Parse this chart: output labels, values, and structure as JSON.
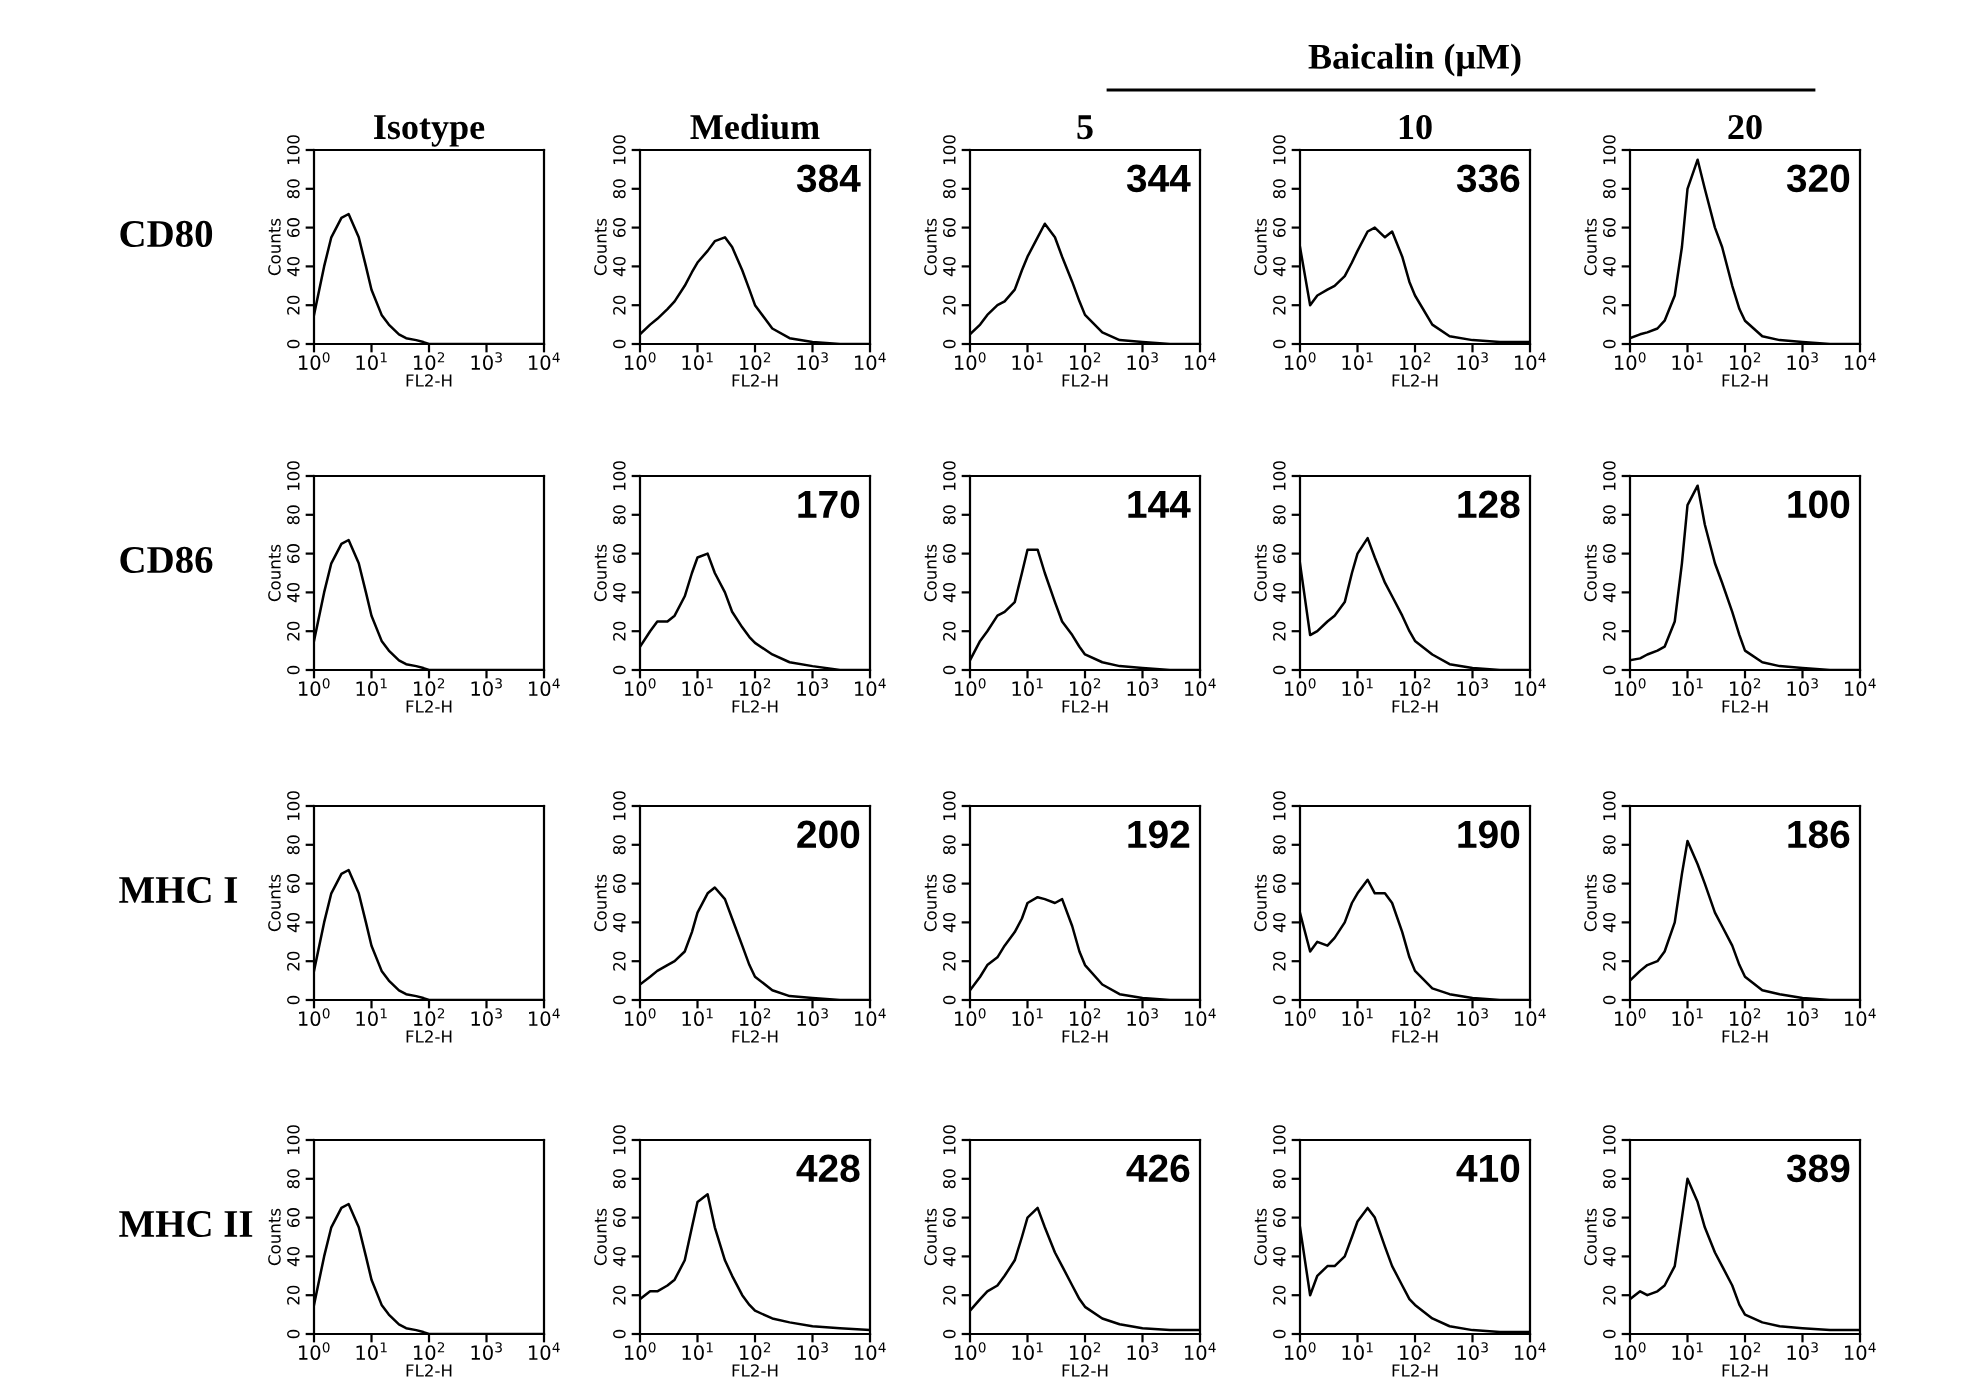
{
  "chart_data": [
    {
      "type": "line",
      "title": "Isotype",
      "annotations": [
        "CD80"
      ],
      "xlabel": "FL2-H",
      "ylabel": "Counts",
      "log": "x",
      "xlim": [
        1,
        10000
      ],
      "ylim": [
        0,
        100
      ],
      "xticks": [
        {
          "value": 1,
          "label": "10$^{0}$"
        },
        {
          "value": 10,
          "label": "10$^{1}$"
        },
        {
          "value": 100,
          "label": "10$^{2}$"
        },
        {
          "value": 1000,
          "label": "10$^{3}$"
        },
        {
          "value": 10000,
          "label": "10$^{4}$"
        }
      ],
      "yticks": [
        0,
        20,
        40,
        60,
        80,
        100
      ],
      "grid": false,
      "x": [
        1,
        1.5,
        2,
        3,
        4,
        6,
        8,
        10,
        15,
        20,
        30,
        40,
        60,
        80,
        100,
        200,
        400,
        1000,
        3000,
        10000
      ],
      "series": [
        {
          "color": "#000000",
          "values": [
            15,
            40,
            55,
            65,
            67,
            55,
            40,
            28,
            15,
            10,
            5,
            3,
            2,
            1,
            0,
            0,
            0,
            0,
            0,
            0
          ]
        }
      ]
    },
    {
      "type": "line",
      "title": "Medium",
      "annotations": [
        "384"
      ],
      "xlabel": "FL2-H",
      "ylabel": "Counts",
      "log": "x",
      "xlim": [
        1,
        10000
      ],
      "ylim": [
        0,
        100
      ],
      "xticks": [
        {
          "value": 1,
          "label": "10$^{0}$"
        },
        {
          "value": 10,
          "label": "10$^{1}$"
        },
        {
          "value": 100,
          "label": "10$^{2}$"
        },
        {
          "value": 1000,
          "label": "10$^{3}$"
        },
        {
          "value": 10000,
          "label": "10$^{4}$"
        }
      ],
      "yticks": [
        0,
        20,
        40,
        60,
        80,
        100
      ],
      "grid": false,
      "x": [
        1,
        1.5,
        2,
        3,
        4,
        6,
        8,
        10,
        15,
        20,
        30,
        40,
        60,
        80,
        100,
        200,
        400,
        1000,
        3000,
        10000
      ],
      "series": [
        {
          "color": "#000000",
          "values": [
            5,
            10,
            13,
            18,
            22,
            30,
            37,
            42,
            48,
            53,
            55,
            50,
            38,
            28,
            20,
            8,
            3,
            1,
            0,
            0
          ]
        }
      ]
    },
    {
      "type": "line",
      "title": "5",
      "annotations": [
        "344"
      ],
      "xlabel": "FL2-H",
      "ylabel": "Counts",
      "log": "x",
      "xlim": [
        1,
        10000
      ],
      "ylim": [
        0,
        100
      ],
      "xticks": [
        {
          "value": 1,
          "label": "10$^{0}$"
        },
        {
          "value": 10,
          "label": "10$^{1}$"
        },
        {
          "value": 100,
          "label": "10$^{2}$"
        },
        {
          "value": 1000,
          "label": "10$^{3}$"
        },
        {
          "value": 10000,
          "label": "10$^{4}$"
        }
      ],
      "yticks": [
        0,
        20,
        40,
        60,
        80,
        100
      ],
      "grid": false,
      "x": [
        1,
        1.5,
        2,
        3,
        4,
        6,
        8,
        10,
        15,
        20,
        30,
        40,
        60,
        80,
        100,
        200,
        400,
        1000,
        3000,
        10000
      ],
      "series": [
        {
          "color": "#000000",
          "values": [
            5,
            10,
            15,
            20,
            22,
            28,
            38,
            45,
            55,
            62,
            55,
            45,
            32,
            22,
            15,
            6,
            2,
            1,
            0,
            0
          ]
        }
      ]
    },
    {
      "type": "line",
      "title": "10",
      "annotations": [
        "Baicalin (μM)",
        "336"
      ],
      "xlabel": "FL2-H",
      "ylabel": "Counts",
      "log": "x",
      "xlim": [
        1,
        10000
      ],
      "ylim": [
        0,
        100
      ],
      "xticks": [
        {
          "value": 1,
          "label": "10$^{0}$"
        },
        {
          "value": 10,
          "label": "10$^{1}$"
        },
        {
          "value": 100,
          "label": "10$^{2}$"
        },
        {
          "value": 1000,
          "label": "10$^{3}$"
        },
        {
          "value": 10000,
          "label": "10$^{4}$"
        }
      ],
      "yticks": [
        0,
        20,
        40,
        60,
        80,
        100
      ],
      "grid": false,
      "x": [
        1,
        1.5,
        2,
        3,
        4,
        6,
        8,
        10,
        15,
        20,
        30,
        40,
        60,
        80,
        100,
        200,
        400,
        1000,
        3000,
        10000
      ],
      "series": [
        {
          "color": "#000000",
          "values": [
            50,
            20,
            25,
            28,
            30,
            35,
            42,
            48,
            58,
            60,
            55,
            58,
            45,
            32,
            25,
            10,
            4,
            2,
            1,
            1
          ]
        }
      ]
    },
    {
      "type": "line",
      "title": "20",
      "annotations": [
        "320"
      ],
      "xlabel": "FL2-H",
      "ylabel": "Counts",
      "log": "x",
      "xlim": [
        1,
        10000
      ],
      "ylim": [
        0,
        100
      ],
      "xticks": [
        {
          "value": 1,
          "label": "10$^{0}$"
        },
        {
          "value": 10,
          "label": "10$^{1}$"
        },
        {
          "value": 100,
          "label": "10$^{2}$"
        },
        {
          "value": 1000,
          "label": "10$^{3}$"
        },
        {
          "value": 10000,
          "label": "10$^{4}$"
        }
      ],
      "yticks": [
        0,
        20,
        40,
        60,
        80,
        100
      ],
      "grid": false,
      "x": [
        1,
        1.5,
        2,
        3,
        4,
        6,
        8,
        10,
        15,
        20,
        30,
        40,
        60,
        80,
        100,
        200,
        400,
        1000,
        3000,
        10000
      ],
      "series": [
        {
          "color": "#000000",
          "values": [
            3,
            5,
            6,
            8,
            12,
            25,
            50,
            80,
            95,
            80,
            60,
            50,
            30,
            18,
            12,
            4,
            2,
            1,
            0,
            0
          ]
        }
      ]
    },
    {
      "type": "line",
      "annotations": [
        "CD86"
      ],
      "xlabel": "FL2-H",
      "ylabel": "Counts",
      "log": "x",
      "xlim": [
        1,
        10000
      ],
      "ylim": [
        0,
        100
      ],
      "xticks": [
        {
          "value": 1,
          "label": "10$^{0}$"
        },
        {
          "value": 10,
          "label": "10$^{1}$"
        },
        {
          "value": 100,
          "label": "10$^{2}$"
        },
        {
          "value": 1000,
          "label": "10$^{3}$"
        },
        {
          "value": 10000,
          "label": "10$^{4}$"
        }
      ],
      "yticks": [
        0,
        20,
        40,
        60,
        80,
        100
      ],
      "grid": false,
      "x": [
        1,
        1.5,
        2,
        3,
        4,
        6,
        8,
        10,
        15,
        20,
        30,
        40,
        60,
        80,
        100,
        200,
        400,
        1000,
        3000,
        10000
      ],
      "series": [
        {
          "color": "#000000",
          "values": [
            15,
            40,
            55,
            65,
            67,
            55,
            40,
            28,
            15,
            10,
            5,
            3,
            2,
            1,
            0,
            0,
            0,
            0,
            0,
            0
          ]
        }
      ]
    },
    {
      "type": "line",
      "annotations": [
        "170"
      ],
      "xlabel": "FL2-H",
      "ylabel": "Counts",
      "log": "x",
      "xlim": [
        1,
        10000
      ],
      "ylim": [
        0,
        100
      ],
      "xticks": [
        {
          "value": 1,
          "label": "10$^{0}$"
        },
        {
          "value": 10,
          "label": "10$^{1}$"
        },
        {
          "value": 100,
          "label": "10$^{2}$"
        },
        {
          "value": 1000,
          "label": "10$^{3}$"
        },
        {
          "value": 10000,
          "label": "10$^{4}$"
        }
      ],
      "yticks": [
        0,
        20,
        40,
        60,
        80,
        100
      ],
      "grid": false,
      "x": [
        1,
        1.5,
        2,
        3,
        4,
        6,
        8,
        10,
        15,
        20,
        30,
        40,
        60,
        80,
        100,
        200,
        400,
        1000,
        3000,
        10000
      ],
      "series": [
        {
          "color": "#000000",
          "values": [
            12,
            20,
            25,
            25,
            28,
            38,
            50,
            58,
            60,
            50,
            40,
            30,
            22,
            17,
            14,
            8,
            4,
            2,
            0,
            0
          ]
        }
      ]
    },
    {
      "type": "line",
      "annotations": [
        "144"
      ],
      "xlabel": "FL2-H",
      "ylabel": "Counts",
      "log": "x",
      "xlim": [
        1,
        10000
      ],
      "ylim": [
        0,
        100
      ],
      "xticks": [
        {
          "value": 1,
          "label": "10$^{0}$"
        },
        {
          "value": 10,
          "label": "10$^{1}$"
        },
        {
          "value": 100,
          "label": "10$^{2}$"
        },
        {
          "value": 1000,
          "label": "10$^{3}$"
        },
        {
          "value": 10000,
          "label": "10$^{4}$"
        }
      ],
      "yticks": [
        0,
        20,
        40,
        60,
        80,
        100
      ],
      "grid": false,
      "x": [
        1,
        1.5,
        2,
        3,
        4,
        6,
        8,
        10,
        15,
        20,
        30,
        40,
        60,
        80,
        100,
        200,
        400,
        1000,
        3000,
        10000
      ],
      "series": [
        {
          "color": "#000000",
          "values": [
            5,
            15,
            20,
            28,
            30,
            35,
            50,
            62,
            62,
            50,
            35,
            25,
            18,
            12,
            8,
            4,
            2,
            1,
            0,
            0
          ]
        }
      ]
    },
    {
      "type": "line",
      "annotations": [
        "128"
      ],
      "xlabel": "FL2-H",
      "ylabel": "Counts",
      "log": "x",
      "xlim": [
        1,
        10000
      ],
      "ylim": [
        0,
        100
      ],
      "xticks": [
        {
          "value": 1,
          "label": "10$^{0}$"
        },
        {
          "value": 10,
          "label": "10$^{1}$"
        },
        {
          "value": 100,
          "label": "10$^{2}$"
        },
        {
          "value": 1000,
          "label": "10$^{3}$"
        },
        {
          "value": 10000,
          "label": "10$^{4}$"
        }
      ],
      "yticks": [
        0,
        20,
        40,
        60,
        80,
        100
      ],
      "grid": false,
      "x": [
        1,
        1.5,
        2,
        3,
        4,
        6,
        8,
        10,
        15,
        20,
        30,
        40,
        60,
        80,
        100,
        200,
        400,
        1000,
        3000,
        10000
      ],
      "series": [
        {
          "color": "#000000",
          "values": [
            55,
            18,
            20,
            25,
            28,
            35,
            50,
            60,
            68,
            58,
            45,
            38,
            28,
            20,
            15,
            8,
            3,
            1,
            0,
            0
          ]
        }
      ]
    },
    {
      "type": "line",
      "annotations": [
        "100"
      ],
      "xlabel": "FL2-H",
      "ylabel": "Counts",
      "log": "x",
      "xlim": [
        1,
        10000
      ],
      "ylim": [
        0,
        100
      ],
      "xticks": [
        {
          "value": 1,
          "label": "10$^{0}$"
        },
        {
          "value": 10,
          "label": "10$^{1}$"
        },
        {
          "value": 100,
          "label": "10$^{2}$"
        },
        {
          "value": 1000,
          "label": "10$^{3}$"
        },
        {
          "value": 10000,
          "label": "10$^{4}$"
        }
      ],
      "yticks": [
        0,
        20,
        40,
        60,
        80,
        100
      ],
      "grid": false,
      "x": [
        1,
        1.5,
        2,
        3,
        4,
        6,
        8,
        10,
        15,
        20,
        30,
        40,
        60,
        80,
        100,
        200,
        400,
        1000,
        3000,
        10000
      ],
      "series": [
        {
          "color": "#000000",
          "values": [
            5,
            6,
            8,
            10,
            12,
            25,
            55,
            85,
            95,
            75,
            55,
            45,
            30,
            18,
            10,
            4,
            2,
            1,
            0,
            0
          ]
        }
      ]
    },
    {
      "type": "line",
      "annotations": [
        "MHC I"
      ],
      "xlabel": "FL2-H",
      "ylabel": "Counts",
      "log": "x",
      "xlim": [
        1,
        10000
      ],
      "ylim": [
        0,
        100
      ],
      "xticks": [
        {
          "value": 1,
          "label": "10$^{0}$"
        },
        {
          "value": 10,
          "label": "10$^{1}$"
        },
        {
          "value": 100,
          "label": "10$^{2}$"
        },
        {
          "value": 1000,
          "label": "10$^{3}$"
        },
        {
          "value": 10000,
          "label": "10$^{4}$"
        }
      ],
      "yticks": [
        0,
        20,
        40,
        60,
        80,
        100
      ],
      "grid": false,
      "x": [
        1,
        1.5,
        2,
        3,
        4,
        6,
        8,
        10,
        15,
        20,
        30,
        40,
        60,
        80,
        100,
        200,
        400,
        1000,
        3000,
        10000
      ],
      "series": [
        {
          "color": "#000000",
          "values": [
            15,
            40,
            55,
            65,
            67,
            55,
            40,
            28,
            15,
            10,
            5,
            3,
            2,
            1,
            0,
            0,
            0,
            0,
            0,
            0
          ]
        }
      ]
    },
    {
      "type": "line",
      "annotations": [
        "200"
      ],
      "xlabel": "FL2-H",
      "ylabel": "Counts",
      "log": "x",
      "xlim": [
        1,
        10000
      ],
      "ylim": [
        0,
        100
      ],
      "xticks": [
        {
          "value": 1,
          "label": "10$^{0}$"
        },
        {
          "value": 10,
          "label": "10$^{1}$"
        },
        {
          "value": 100,
          "label": "10$^{2}$"
        },
        {
          "value": 1000,
          "label": "10$^{3}$"
        },
        {
          "value": 10000,
          "label": "10$^{4}$"
        }
      ],
      "yticks": [
        0,
        20,
        40,
        60,
        80,
        100
      ],
      "grid": false,
      "x": [
        1,
        1.5,
        2,
        3,
        4,
        6,
        8,
        10,
        15,
        20,
        30,
        40,
        60,
        80,
        100,
        200,
        400,
        1000,
        3000,
        10000
      ],
      "series": [
        {
          "color": "#000000",
          "values": [
            8,
            12,
            15,
            18,
            20,
            25,
            35,
            45,
            55,
            58,
            52,
            42,
            28,
            18,
            12,
            5,
            2,
            1,
            0,
            0
          ]
        }
      ]
    },
    {
      "type": "line",
      "annotations": [
        "192"
      ],
      "xlabel": "FL2-H",
      "ylabel": "Counts",
      "log": "x",
      "xlim": [
        1,
        10000
      ],
      "ylim": [
        0,
        100
      ],
      "xticks": [
        {
          "value": 1,
          "label": "10$^{0}$"
        },
        {
          "value": 10,
          "label": "10$^{1}$"
        },
        {
          "value": 100,
          "label": "10$^{2}$"
        },
        {
          "value": 1000,
          "label": "10$^{3}$"
        },
        {
          "value": 10000,
          "label": "10$^{4}$"
        }
      ],
      "yticks": [
        0,
        20,
        40,
        60,
        80,
        100
      ],
      "grid": false,
      "x": [
        1,
        1.5,
        2,
        3,
        4,
        6,
        8,
        10,
        15,
        20,
        30,
        40,
        60,
        80,
        100,
        200,
        400,
        1000,
        3000,
        10000
      ],
      "series": [
        {
          "color": "#000000",
          "values": [
            5,
            12,
            18,
            22,
            28,
            35,
            42,
            50,
            53,
            52,
            50,
            52,
            38,
            25,
            18,
            8,
            3,
            1,
            0,
            0
          ]
        }
      ]
    },
    {
      "type": "line",
      "annotations": [
        "190"
      ],
      "xlabel": "FL2-H",
      "ylabel": "Counts",
      "log": "x",
      "xlim": [
        1,
        10000
      ],
      "ylim": [
        0,
        100
      ],
      "xticks": [
        {
          "value": 1,
          "label": "10$^{0}$"
        },
        {
          "value": 10,
          "label": "10$^{1}$"
        },
        {
          "value": 100,
          "label": "10$^{2}$"
        },
        {
          "value": 1000,
          "label": "10$^{3}$"
        },
        {
          "value": 10000,
          "label": "10$^{4}$"
        }
      ],
      "yticks": [
        0,
        20,
        40,
        60,
        80,
        100
      ],
      "grid": false,
      "x": [
        1,
        1.5,
        2,
        3,
        4,
        6,
        8,
        10,
        15,
        20,
        30,
        40,
        60,
        80,
        100,
        200,
        400,
        1000,
        3000,
        10000
      ],
      "series": [
        {
          "color": "#000000",
          "values": [
            45,
            25,
            30,
            28,
            32,
            40,
            50,
            55,
            62,
            55,
            55,
            50,
            35,
            22,
            15,
            6,
            3,
            1,
            0,
            0
          ]
        }
      ]
    },
    {
      "type": "line",
      "annotations": [
        "186"
      ],
      "xlabel": "FL2-H",
      "ylabel": "Counts",
      "log": "x",
      "xlim": [
        1,
        10000
      ],
      "ylim": [
        0,
        100
      ],
      "xticks": [
        {
          "value": 1,
          "label": "10$^{0}$"
        },
        {
          "value": 10,
          "label": "10$^{1}$"
        },
        {
          "value": 100,
          "label": "10$^{2}$"
        },
        {
          "value": 1000,
          "label": "10$^{3}$"
        },
        {
          "value": 10000,
          "label": "10$^{4}$"
        }
      ],
      "yticks": [
        0,
        20,
        40,
        60,
        80,
        100
      ],
      "grid": false,
      "x": [
        1,
        1.5,
        2,
        3,
        4,
        6,
        8,
        10,
        15,
        20,
        30,
        40,
        60,
        80,
        100,
        200,
        400,
        1000,
        3000,
        10000
      ],
      "series": [
        {
          "color": "#000000",
          "values": [
            10,
            15,
            18,
            20,
            25,
            40,
            65,
            82,
            70,
            60,
            45,
            38,
            28,
            18,
            12,
            5,
            3,
            1,
            0,
            0
          ]
        }
      ]
    },
    {
      "type": "line",
      "annotations": [
        "MHC II"
      ],
      "xlabel": "FL2-H",
      "ylabel": "Counts",
      "log": "x",
      "xlim": [
        1,
        10000
      ],
      "ylim": [
        0,
        100
      ],
      "xticks": [
        {
          "value": 1,
          "label": "10$^{0}$"
        },
        {
          "value": 10,
          "label": "10$^{1}$"
        },
        {
          "value": 100,
          "label": "10$^{2}$"
        },
        {
          "value": 1000,
          "label": "10$^{3}$"
        },
        {
          "value": 10000,
          "label": "10$^{4}$"
        }
      ],
      "yticks": [
        0,
        20,
        40,
        60,
        80,
        100
      ],
      "grid": false,
      "x": [
        1,
        1.5,
        2,
        3,
        4,
        6,
        8,
        10,
        15,
        20,
        30,
        40,
        60,
        80,
        100,
        200,
        400,
        1000,
        3000,
        10000
      ],
      "series": [
        {
          "color": "#000000",
          "values": [
            15,
            40,
            55,
            65,
            67,
            55,
            40,
            28,
            15,
            10,
            5,
            3,
            2,
            1,
            0,
            0,
            0,
            0,
            0,
            0
          ]
        }
      ]
    },
    {
      "type": "line",
      "annotations": [
        "428"
      ],
      "xlabel": "FL2-H",
      "ylabel": "Counts",
      "log": "x",
      "xlim": [
        1,
        10000
      ],
      "ylim": [
        0,
        100
      ],
      "xticks": [
        {
          "value": 1,
          "label": "10$^{0}$"
        },
        {
          "value": 10,
          "label": "10$^{1}$"
        },
        {
          "value": 100,
          "label": "10$^{2}$"
        },
        {
          "value": 1000,
          "label": "10$^{3}$"
        },
        {
          "value": 10000,
          "label": "10$^{4}$"
        }
      ],
      "yticks": [
        0,
        20,
        40,
        60,
        80,
        100
      ],
      "grid": false,
      "x": [
        1,
        1.5,
        2,
        3,
        4,
        6,
        8,
        10,
        15,
        20,
        30,
        40,
        60,
        80,
        100,
        200,
        400,
        1000,
        3000,
        10000
      ],
      "series": [
        {
          "color": "#000000",
          "values": [
            18,
            22,
            22,
            25,
            28,
            38,
            55,
            68,
            72,
            55,
            38,
            30,
            20,
            15,
            12,
            8,
            6,
            4,
            3,
            2
          ]
        }
      ]
    },
    {
      "type": "line",
      "annotations": [
        "426"
      ],
      "xlabel": "FL2-H",
      "ylabel": "Counts",
      "log": "x",
      "xlim": [
        1,
        10000
      ],
      "ylim": [
        0,
        100
      ],
      "xticks": [
        {
          "value": 1,
          "label": "10$^{0}$"
        },
        {
          "value": 10,
          "label": "10$^{1}$"
        },
        {
          "value": 100,
          "label": "10$^{2}$"
        },
        {
          "value": 1000,
          "label": "10$^{3}$"
        },
        {
          "value": 10000,
          "label": "10$^{4}$"
        }
      ],
      "yticks": [
        0,
        20,
        40,
        60,
        80,
        100
      ],
      "grid": false,
      "x": [
        1,
        1.5,
        2,
        3,
        4,
        6,
        8,
        10,
        15,
        20,
        30,
        40,
        60,
        80,
        100,
        200,
        400,
        1000,
        3000,
        10000
      ],
      "series": [
        {
          "color": "#000000",
          "values": [
            12,
            18,
            22,
            25,
            30,
            38,
            50,
            60,
            65,
            55,
            42,
            35,
            25,
            18,
            14,
            8,
            5,
            3,
            2,
            2
          ]
        }
      ]
    },
    {
      "type": "line",
      "annotations": [
        "410"
      ],
      "xlabel": "FL2-H",
      "ylabel": "Counts",
      "log": "x",
      "xlim": [
        1,
        10000
      ],
      "ylim": [
        0,
        100
      ],
      "xticks": [
        {
          "value": 1,
          "label": "10$^{0}$"
        },
        {
          "value": 10,
          "label": "10$^{1}$"
        },
        {
          "value": 100,
          "label": "10$^{2}$"
        },
        {
          "value": 1000,
          "label": "10$^{3}$"
        },
        {
          "value": 10000,
          "label": "10$^{4}$"
        }
      ],
      "yticks": [
        0,
        20,
        40,
        60,
        80,
        100
      ],
      "grid": false,
      "x": [
        1,
        1.5,
        2,
        3,
        4,
        6,
        8,
        10,
        15,
        20,
        30,
        40,
        60,
        80,
        100,
        200,
        400,
        1000,
        3000,
        10000
      ],
      "series": [
        {
          "color": "#000000",
          "values": [
            55,
            20,
            30,
            35,
            35,
            40,
            50,
            58,
            65,
            60,
            45,
            35,
            25,
            18,
            15,
            8,
            4,
            2,
            1,
            1
          ]
        }
      ]
    },
    {
      "type": "line",
      "annotations": [
        "389"
      ],
      "xlabel": "FL2-H",
      "ylabel": "Counts",
      "log": "x",
      "xlim": [
        1,
        10000
      ],
      "ylim": [
        0,
        100
      ],
      "xticks": [
        {
          "value": 1,
          "label": "10$^{0}$"
        },
        {
          "value": 10,
          "label": "10$^{1}$"
        },
        {
          "value": 100,
          "label": "10$^{2}$"
        },
        {
          "value": 1000,
          "label": "10$^{3}$"
        },
        {
          "value": 10000,
          "label": "10$^{4}$"
        }
      ],
      "yticks": [
        0,
        20,
        40,
        60,
        80,
        100
      ],
      "grid": false,
      "x": [
        1,
        1.5,
        2,
        3,
        4,
        6,
        8,
        10,
        15,
        20,
        30,
        40,
        60,
        80,
        100,
        200,
        400,
        1000,
        3000,
        10000
      ],
      "series": [
        {
          "color": "#000000",
          "values": [
            18,
            22,
            20,
            22,
            25,
            35,
            60,
            80,
            68,
            55,
            42,
            35,
            25,
            15,
            10,
            6,
            4,
            3,
            2,
            2
          ]
        }
      ]
    }
  ]
}
